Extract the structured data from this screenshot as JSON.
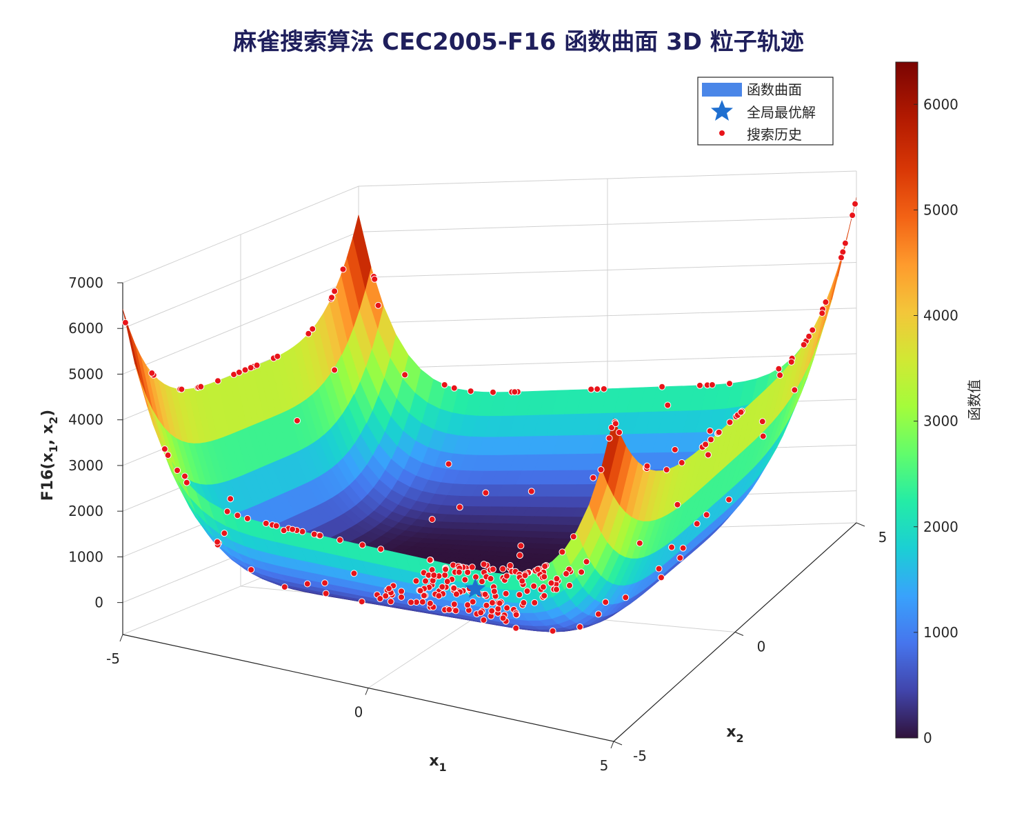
{
  "chart_data": {
    "type": "surface3d",
    "title": "麻雀搜索算法 CEC2005-F16 函数曲面 3D 粒子轨迹",
    "xlabel": {
      "base": "x",
      "sub": "1"
    },
    "ylabel": {
      "base": "x",
      "sub": "2"
    },
    "zlabel": {
      "pre": "F16(x",
      "sub1": "1",
      "mid": ", x",
      "sub2": "2",
      "post": ")"
    },
    "xlim": [
      -5,
      5
    ],
    "ylim": [
      -5,
      5
    ],
    "zlim": [
      -700,
      7000
    ],
    "x_ticks": [
      "-5",
      "0",
      "5"
    ],
    "y_ticks": [
      "-5",
      "0",
      "5"
    ],
    "z_ticks": [
      "0",
      "1000",
      "2000",
      "3000",
      "4000",
      "5000",
      "6000",
      "7000"
    ],
    "z_tick_values": [
      0,
      1000,
      2000,
      3000,
      4000,
      5000,
      6000,
      7000
    ],
    "colorbar": {
      "label": "函数值",
      "ticks": [
        "0",
        "1000",
        "2000",
        "3000",
        "4000",
        "5000",
        "6000"
      ],
      "tick_values": [
        0,
        1000,
        2000,
        3000,
        4000,
        5000,
        6000
      ],
      "range": [
        0,
        6400
      ],
      "colormap": "turbo"
    },
    "legend": {
      "position": "top-right",
      "entries": [
        {
          "label": "函数曲面",
          "marker": "patch",
          "color": "#4a86e8"
        },
        {
          "label": "全局最优解",
          "marker": "star",
          "color": "#1f6fd0"
        },
        {
          "label": "搜索历史",
          "marker": "dot",
          "color": "#e8141a"
        }
      ]
    },
    "optimum": {
      "x1": 0.09,
      "x2": -0.71,
      "f": -1.0316
    },
    "grid": true
  }
}
